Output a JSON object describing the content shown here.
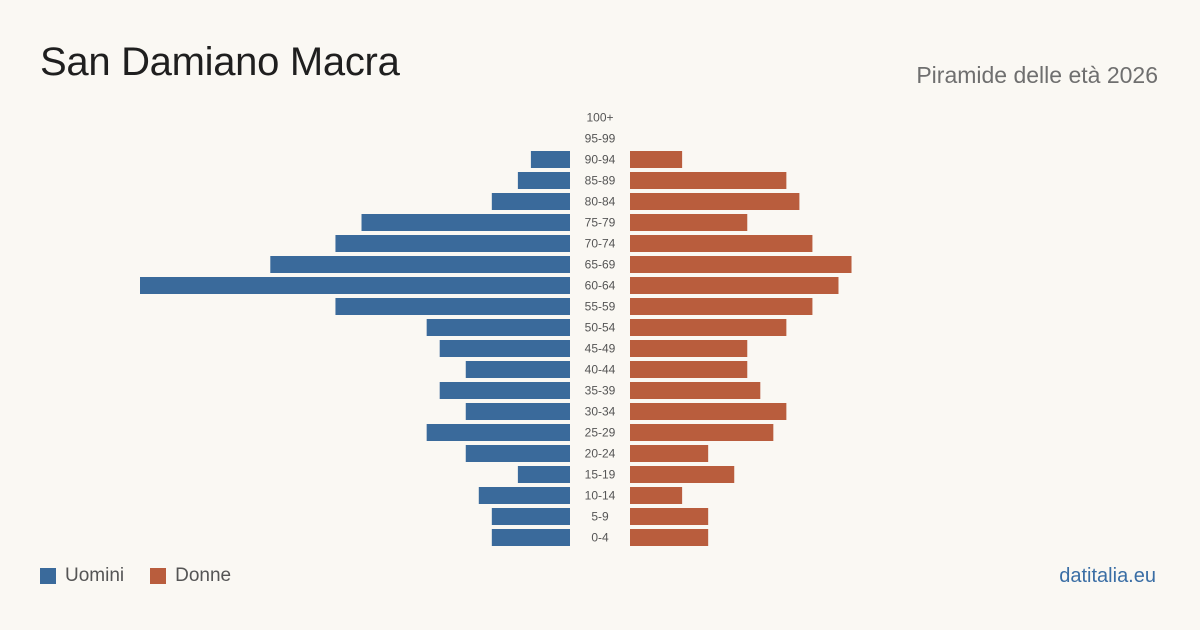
{
  "header": {
    "title": "San Damiano Macra",
    "subtitle": "Piramide delle età 2026"
  },
  "legend": {
    "men_label": "Uomini",
    "women_label": "Donne"
  },
  "colors": {
    "men": "#3a6a9b",
    "women": "#b95d3d"
  },
  "footer": {
    "source": "datitalia.eu"
  },
  "chart_data": {
    "type": "bar",
    "orientation": "horizontal-pyramid",
    "categories": [
      "100+",
      "95-99",
      "90-94",
      "85-89",
      "80-84",
      "75-79",
      "70-74",
      "65-69",
      "60-64",
      "55-59",
      "50-54",
      "45-49",
      "40-44",
      "35-39",
      "30-34",
      "25-29",
      "20-24",
      "15-19",
      "10-14",
      "5-9",
      "0-4"
    ],
    "series": [
      {
        "name": "Uomini",
        "side": "left",
        "values": [
          0,
          0,
          3,
          4,
          6,
          16,
          18,
          23,
          33,
          18,
          11,
          10,
          8,
          10,
          8,
          11,
          8,
          4,
          7,
          6,
          6
        ]
      },
      {
        "name": "Donne",
        "side": "right",
        "values": [
          0,
          0,
          4,
          12,
          13,
          9,
          14,
          17,
          16,
          14,
          12,
          9,
          9,
          10,
          12,
          11,
          6,
          8,
          4,
          6,
          6
        ]
      }
    ],
    "xlim": [
      0,
      33
    ],
    "grid": false,
    "legend_position": "bottom-left"
  }
}
